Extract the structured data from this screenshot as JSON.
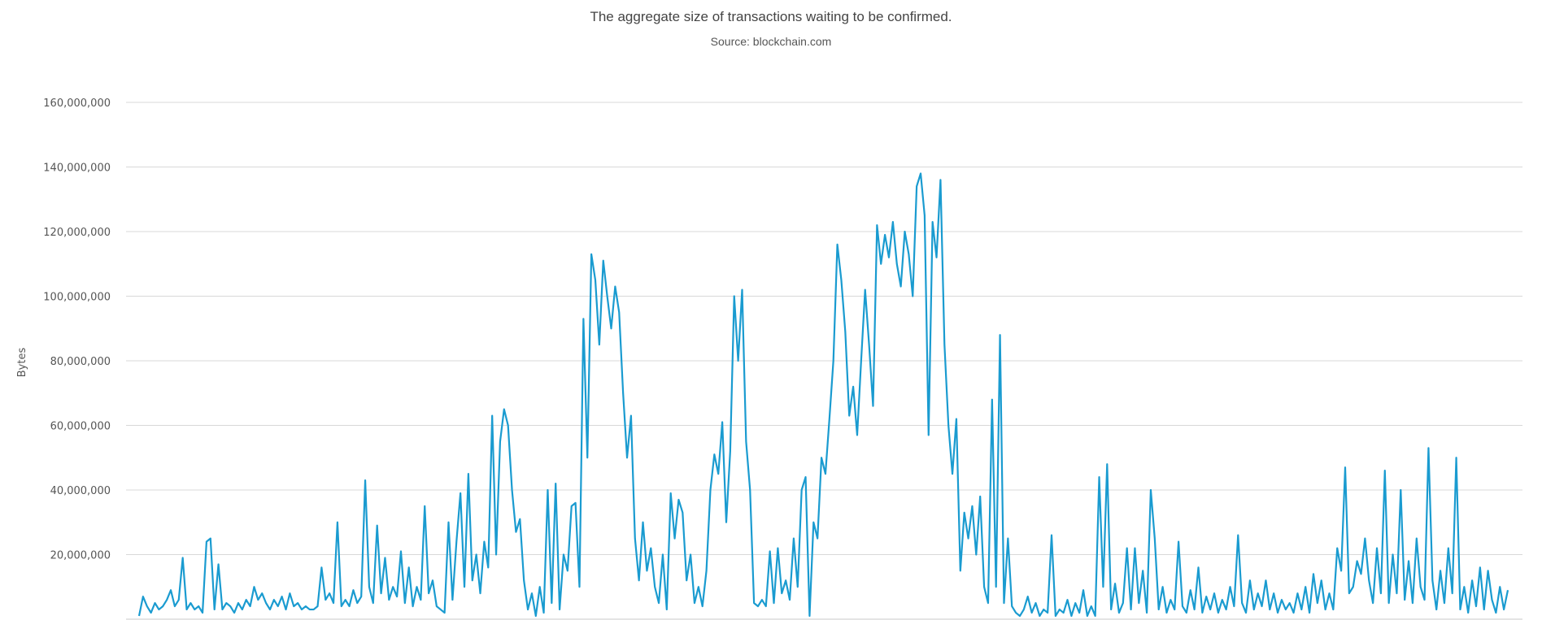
{
  "chart_data": {
    "type": "line",
    "title": "The aggregate size of transactions waiting to be confirmed.",
    "subtitle": "Source: blockchain.com",
    "ylabel": "Bytes",
    "xlabel": "",
    "ylim": [
      0,
      160000000
    ],
    "y_ticks": [
      {
        "value": 20000000,
        "label": "20,000,000"
      },
      {
        "value": 40000000,
        "label": "40,000,000"
      },
      {
        "value": 60000000,
        "label": "60,000,000"
      },
      {
        "value": 80000000,
        "label": "80,000,000"
      },
      {
        "value": 100000000,
        "label": "100,000,000"
      },
      {
        "value": 120000000,
        "label": "120,000,000"
      },
      {
        "value": 140000000,
        "label": "140,000,000"
      },
      {
        "value": 160000000,
        "label": "160,000,000"
      }
    ],
    "grid": true,
    "legend": "none",
    "line_color": "#1a9bd0",
    "series": [
      {
        "values": [
          1000000,
          7000000,
          4000000,
          2000000,
          5000000,
          3000000,
          4000000,
          6000000,
          9000000,
          4000000,
          6000000,
          19000000,
          3000000,
          5000000,
          3000000,
          4000000,
          2000000,
          24000000,
          25000000,
          3000000,
          17000000,
          3000000,
          5000000,
          4000000,
          2000000,
          5000000,
          3000000,
          6000000,
          4000000,
          10000000,
          6000000,
          8000000,
          5000000,
          3000000,
          6000000,
          4000000,
          7000000,
          3000000,
          8000000,
          4000000,
          5000000,
          3000000,
          4000000,
          3000000,
          3000000,
          4000000,
          16000000,
          6000000,
          8000000,
          5000000,
          30000000,
          4000000,
          6000000,
          4000000,
          9000000,
          5000000,
          7000000,
          43000000,
          10000000,
          5000000,
          29000000,
          8000000,
          19000000,
          6000000,
          10000000,
          7000000,
          21000000,
          5000000,
          16000000,
          4000000,
          10000000,
          6000000,
          35000000,
          8000000,
          12000000,
          4000000,
          3000000,
          2000000,
          30000000,
          6000000,
          24000000,
          39000000,
          10000000,
          45000000,
          12000000,
          20000000,
          8000000,
          24000000,
          16000000,
          63000000,
          20000000,
          55000000,
          65000000,
          60000000,
          40000000,
          27000000,
          31000000,
          12000000,
          3000000,
          8000000,
          1000000,
          10000000,
          2000000,
          40000000,
          5000000,
          42000000,
          3000000,
          20000000,
          15000000,
          35000000,
          36000000,
          10000000,
          93000000,
          50000000,
          113000000,
          105000000,
          85000000,
          111000000,
          100000000,
          90000000,
          103000000,
          95000000,
          70000000,
          50000000,
          63000000,
          25000000,
          12000000,
          30000000,
          15000000,
          22000000,
          10000000,
          5000000,
          20000000,
          3000000,
          39000000,
          25000000,
          37000000,
          33000000,
          12000000,
          20000000,
          5000000,
          10000000,
          4000000,
          15000000,
          40000000,
          51000000,
          45000000,
          61000000,
          30000000,
          52000000,
          100000000,
          80000000,
          102000000,
          55000000,
          40000000,
          5000000,
          4000000,
          6000000,
          4000000,
          21000000,
          5000000,
          22000000,
          8000000,
          12000000,
          6000000,
          25000000,
          10000000,
          40000000,
          44000000,
          1000000,
          30000000,
          25000000,
          50000000,
          45000000,
          62000000,
          80000000,
          116000000,
          105000000,
          89000000,
          63000000,
          72000000,
          57000000,
          80000000,
          102000000,
          85000000,
          66000000,
          122000000,
          110000000,
          119000000,
          112000000,
          123000000,
          110000000,
          103000000,
          120000000,
          113000000,
          100000000,
          134000000,
          138000000,
          125000000,
          57000000,
          123000000,
          112000000,
          136000000,
          85000000,
          60000000,
          45000000,
          62000000,
          15000000,
          33000000,
          25000000,
          35000000,
          20000000,
          38000000,
          10000000,
          5000000,
          68000000,
          10000000,
          88000000,
          5000000,
          25000000,
          4000000,
          2000000,
          1000000,
          3000000,
          7000000,
          2000000,
          5000000,
          1000000,
          3000000,
          2000000,
          26000000,
          1000000,
          3000000,
          2000000,
          6000000,
          1000000,
          5000000,
          2000000,
          9000000,
          1000000,
          4000000,
          1000000,
          44000000,
          10000000,
          48000000,
          3000000,
          11000000,
          2000000,
          5000000,
          22000000,
          3000000,
          22000000,
          5000000,
          15000000,
          2000000,
          40000000,
          25000000,
          3000000,
          10000000,
          2000000,
          6000000,
          3000000,
          24000000,
          4000000,
          2000000,
          9000000,
          3000000,
          16000000,
          2000000,
          7000000,
          3000000,
          8000000,
          2000000,
          6000000,
          3000000,
          10000000,
          4000000,
          26000000,
          5000000,
          2000000,
          12000000,
          3000000,
          8000000,
          4000000,
          12000000,
          3000000,
          8000000,
          2000000,
          6000000,
          3000000,
          5000000,
          2000000,
          8000000,
          3000000,
          10000000,
          2000000,
          14000000,
          5000000,
          12000000,
          3000000,
          8000000,
          3000000,
          22000000,
          15000000,
          47000000,
          8000000,
          10000000,
          18000000,
          14000000,
          25000000,
          12000000,
          5000000,
          22000000,
          8000000,
          46000000,
          5000000,
          20000000,
          8000000,
          40000000,
          6000000,
          18000000,
          5000000,
          25000000,
          10000000,
          6000000,
          53000000,
          12000000,
          3000000,
          15000000,
          5000000,
          22000000,
          8000000,
          50000000,
          3000000,
          10000000,
          2000000,
          12000000,
          4000000,
          16000000,
          3000000,
          15000000,
          6000000,
          2000000,
          10000000,
          3000000,
          9000000
        ]
      }
    ]
  }
}
